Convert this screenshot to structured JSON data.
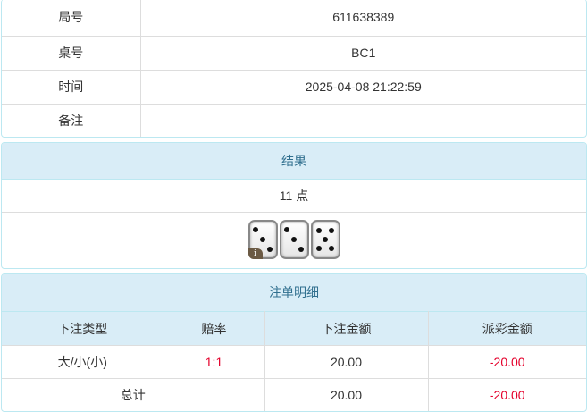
{
  "info": [
    {
      "label": "局号",
      "value": "611638389"
    },
    {
      "label": "桌号",
      "value": "BC1"
    },
    {
      "label": "时间",
      "value": "2025-04-08 21:22:59"
    },
    {
      "label": "备注",
      "value": ""
    }
  ],
  "result": {
    "title": "结果",
    "points": "11 点",
    "dice": [
      3,
      3,
      5
    ],
    "info_badge": "i"
  },
  "bets": {
    "title": "注单明细",
    "columns": [
      "下注类型",
      "赔率",
      "下注金额",
      "派彩金额"
    ],
    "rows": [
      {
        "type": "大/小(小)",
        "odds": "1:1",
        "amount": "20.00",
        "payout": "-20.00"
      }
    ],
    "total": {
      "label": "总计",
      "amount": "20.00",
      "payout": "-20.00"
    },
    "colors": {
      "negative": "#e4002b",
      "header_bg": "#d9edf7",
      "header_text": "#31708f"
    }
  }
}
